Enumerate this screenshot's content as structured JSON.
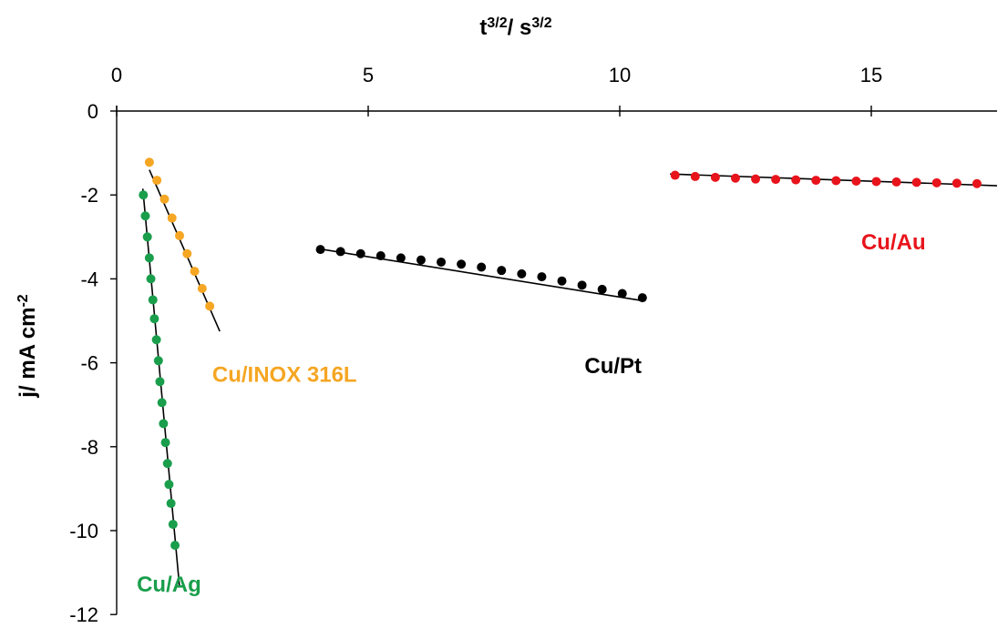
{
  "chart_data": {
    "type": "scatter",
    "title": "",
    "xlabel": {
      "base": "t",
      "exp": "3/2",
      "sep": "/ ",
      "base2": "s",
      "exp2": "3/2"
    },
    "ylabel": {
      "main": "j/ mA cm",
      "sup": "-2"
    },
    "x_axis_position": "top",
    "xlim": [
      0,
      17.5
    ],
    "ylim": [
      -12,
      0
    ],
    "xticks": [
      0,
      5,
      10,
      15
    ],
    "yticks": [
      0,
      -2,
      -4,
      -6,
      -8,
      -10,
      -12
    ],
    "grid": false,
    "legend": "none",
    "series": [
      {
        "name": "Cu/Ag",
        "color": "#1a9e4c",
        "x": [
          0.53,
          0.57,
          0.61,
          0.65,
          0.68,
          0.72,
          0.75,
          0.79,
          0.83,
          0.86,
          0.9,
          0.93,
          0.97,
          1.01,
          1.04,
          1.08,
          1.12,
          1.16
        ],
        "y": [
          -2.0,
          -2.5,
          -3.0,
          -3.5,
          -4.0,
          -4.5,
          -4.95,
          -5.45,
          -5.95,
          -6.45,
          -6.95,
          -7.45,
          -7.9,
          -8.4,
          -8.9,
          -9.35,
          -9.85,
          -10.35
        ],
        "fit": {
          "x": [
            0.52,
            1.25
          ],
          "y": [
            -1.85,
            -11.35
          ]
        },
        "label": "Cu/Ag"
      },
      {
        "name": "Cu/INOX 316L",
        "color": "#f5a623",
        "x": [
          0.65,
          0.8,
          0.95,
          1.1,
          1.25,
          1.4,
          1.55,
          1.7,
          1.85
        ],
        "y": [
          -1.22,
          -1.65,
          -2.1,
          -2.55,
          -2.97,
          -3.4,
          -3.82,
          -4.23,
          -4.65
        ],
        "fit": {
          "x": [
            0.65,
            2.05
          ],
          "y": [
            -1.4,
            -5.25
          ]
        },
        "label": "Cu/INOX 316L"
      },
      {
        "name": "Cu/Pt",
        "color": "#000000",
        "x": [
          4.05,
          4.45,
          4.85,
          5.25,
          5.65,
          6.05,
          6.45,
          6.85,
          7.25,
          7.65,
          8.05,
          8.45,
          8.85,
          9.25,
          9.65,
          10.05,
          10.45
        ],
        "y": [
          -3.3,
          -3.35,
          -3.4,
          -3.45,
          -3.5,
          -3.55,
          -3.6,
          -3.65,
          -3.72,
          -3.8,
          -3.88,
          -3.95,
          -4.05,
          -4.15,
          -4.25,
          -4.35,
          -4.45
        ],
        "fit": {
          "x": [
            4.0,
            10.5
          ],
          "y": [
            -3.28,
            -4.53
          ]
        },
        "label": "Cu/Pt"
      },
      {
        "name": "Cu/Au",
        "color": "#e8141c",
        "x": [
          11.1,
          11.5,
          11.9,
          12.3,
          12.7,
          13.1,
          13.5,
          13.9,
          14.3,
          14.7,
          15.1,
          15.5,
          15.9,
          16.3,
          16.7,
          17.1
        ],
        "y": [
          -1.53,
          -1.56,
          -1.58,
          -1.6,
          -1.62,
          -1.63,
          -1.64,
          -1.65,
          -1.66,
          -1.67,
          -1.68,
          -1.69,
          -1.7,
          -1.71,
          -1.72,
          -1.73
        ],
        "fit": {
          "x": [
            11.0,
            17.5
          ],
          "y": [
            -1.5,
            -1.78
          ]
        },
        "label": "Cu/Au"
      }
    ]
  }
}
